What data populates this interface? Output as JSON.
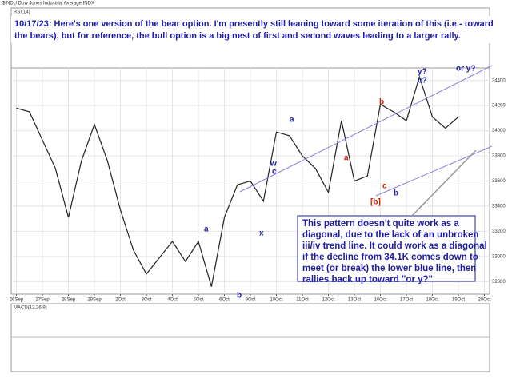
{
  "chart_data": {
    "type": "line",
    "title": "$INDU Dow Jones Industrial Average INDX",
    "x": [
      0,
      0.5,
      1.5,
      2,
      2.5,
      3,
      3.5,
      4,
      4.5,
      5,
      5.5,
      6,
      6.5,
      7,
      7.5,
      8,
      8.5,
      9,
      9.5,
      10,
      10.5,
      11,
      11.5,
      12,
      12.5,
      13,
      13.5,
      14,
      14.5,
      15,
      15.5,
      16,
      16.5,
      17
    ],
    "values": [
      34180,
      34150,
      33700,
      33310,
      33760,
      34050,
      33760,
      33370,
      33050,
      32860,
      32990,
      33120,
      32960,
      33120,
      32760,
      33310,
      33570,
      33600,
      33440,
      33990,
      33960,
      33800,
      33700,
      33510,
      34080,
      33600,
      33640,
      34210,
      34150,
      34080,
      34430,
      34110,
      34020,
      34110
    ],
    "color": "#222222",
    "xlim": [
      -0.2,
      18.2
    ],
    "xticks": [
      {
        "value": 0,
        "label": "26Sep"
      },
      {
        "value": 1,
        "label": "27Sep"
      },
      {
        "value": 2,
        "label": "28Sep"
      },
      {
        "value": 3,
        "label": "29Sep"
      },
      {
        "value": 4,
        "label": "2Oct"
      },
      {
        "value": 5,
        "label": "3Oct"
      },
      {
        "value": 6,
        "label": "4Oct"
      },
      {
        "value": 7,
        "label": "5Oct"
      },
      {
        "value": 8,
        "label": "6Oct"
      },
      {
        "value": 9,
        "label": "9Oct"
      },
      {
        "value": 10,
        "label": "10Oct"
      },
      {
        "value": 11,
        "label": "11Oct"
      },
      {
        "value": 12,
        "label": "12Oct"
      },
      {
        "value": 13,
        "label": "13Oct"
      },
      {
        "value": 14,
        "label": "16Oct"
      },
      {
        "value": 15,
        "label": "17Oct"
      },
      {
        "value": 16,
        "label": "18Oct"
      },
      {
        "value": 17,
        "label": "19Oct"
      },
      {
        "value": 18,
        "label": "20Oct"
      }
    ],
    "ylim": [
      32700,
      34500
    ],
    "yticks": [
      32800,
      33000,
      33200,
      33400,
      33600,
      33800,
      34000,
      34200,
      34400
    ],
    "grid": true,
    "upper_panel": "RSI(14)",
    "lower_panel": "MACD(12,26,9)",
    "annotations": [
      "10/17/23:  Here's one version of the bear option.  I'm presently still leaning toward some iteration of this (i.e.- toward",
      "the bears), but for reference, the bull option is a big nest of first and second waves leading to a larger rally.",
      "This pattern doesn't quite work as a",
      "diagonal, due to the lack of an unbroken",
      "iii/iv trend line.  It could work as a diagonal",
      "if the decline from 34.1K comes down to",
      "meet (or break) the lower blue line, then",
      "rallies back up toward \"or y?\"",
      "y?",
      "c?",
      "or y?",
      "a",
      "b",
      "a",
      "b",
      "c",
      "w",
      "c",
      "x",
      "a",
      "b",
      "[b]"
    ]
  }
}
